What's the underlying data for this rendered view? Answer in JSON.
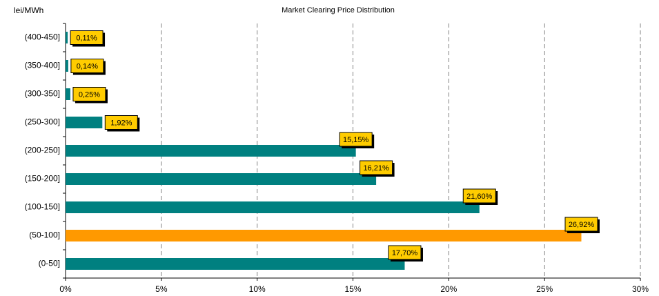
{
  "chart_data": {
    "type": "bar",
    "orientation": "horizontal",
    "title": "Market Clearing Price Distribution",
    "y_label": "lei/MWh",
    "categories": [
      "(400-450]",
      "(350-400]",
      "(300-350]",
      "(250-300]",
      "(200-250]",
      "(150-200]",
      "(100-150]",
      "(50-100]",
      "(0-50]"
    ],
    "values": [
      0.11,
      0.14,
      0.25,
      1.92,
      15.15,
      16.21,
      21.6,
      26.92,
      17.7
    ],
    "value_labels": [
      "0,11%",
      "0,14%",
      "0,25%",
      "1,92%",
      "15,15%",
      "16,21%",
      "21,60%",
      "26,92%",
      "17,70%"
    ],
    "colors": [
      "#008080",
      "#008080",
      "#008080",
      "#008080",
      "#008080",
      "#008080",
      "#008080",
      "#ff9900",
      "#008080"
    ],
    "label_color": "#ffcc00",
    "xlim": [
      0,
      30
    ],
    "xticks": [
      {
        "value": 0,
        "label": "0%"
      },
      {
        "value": 5,
        "label": "5%"
      },
      {
        "value": 10,
        "label": "10%"
      },
      {
        "value": 15,
        "label": "15%"
      },
      {
        "value": 20,
        "label": "20%"
      },
      {
        "value": 25,
        "label": "25%"
      },
      {
        "value": 30,
        "label": "30%"
      }
    ],
    "grid": true
  }
}
